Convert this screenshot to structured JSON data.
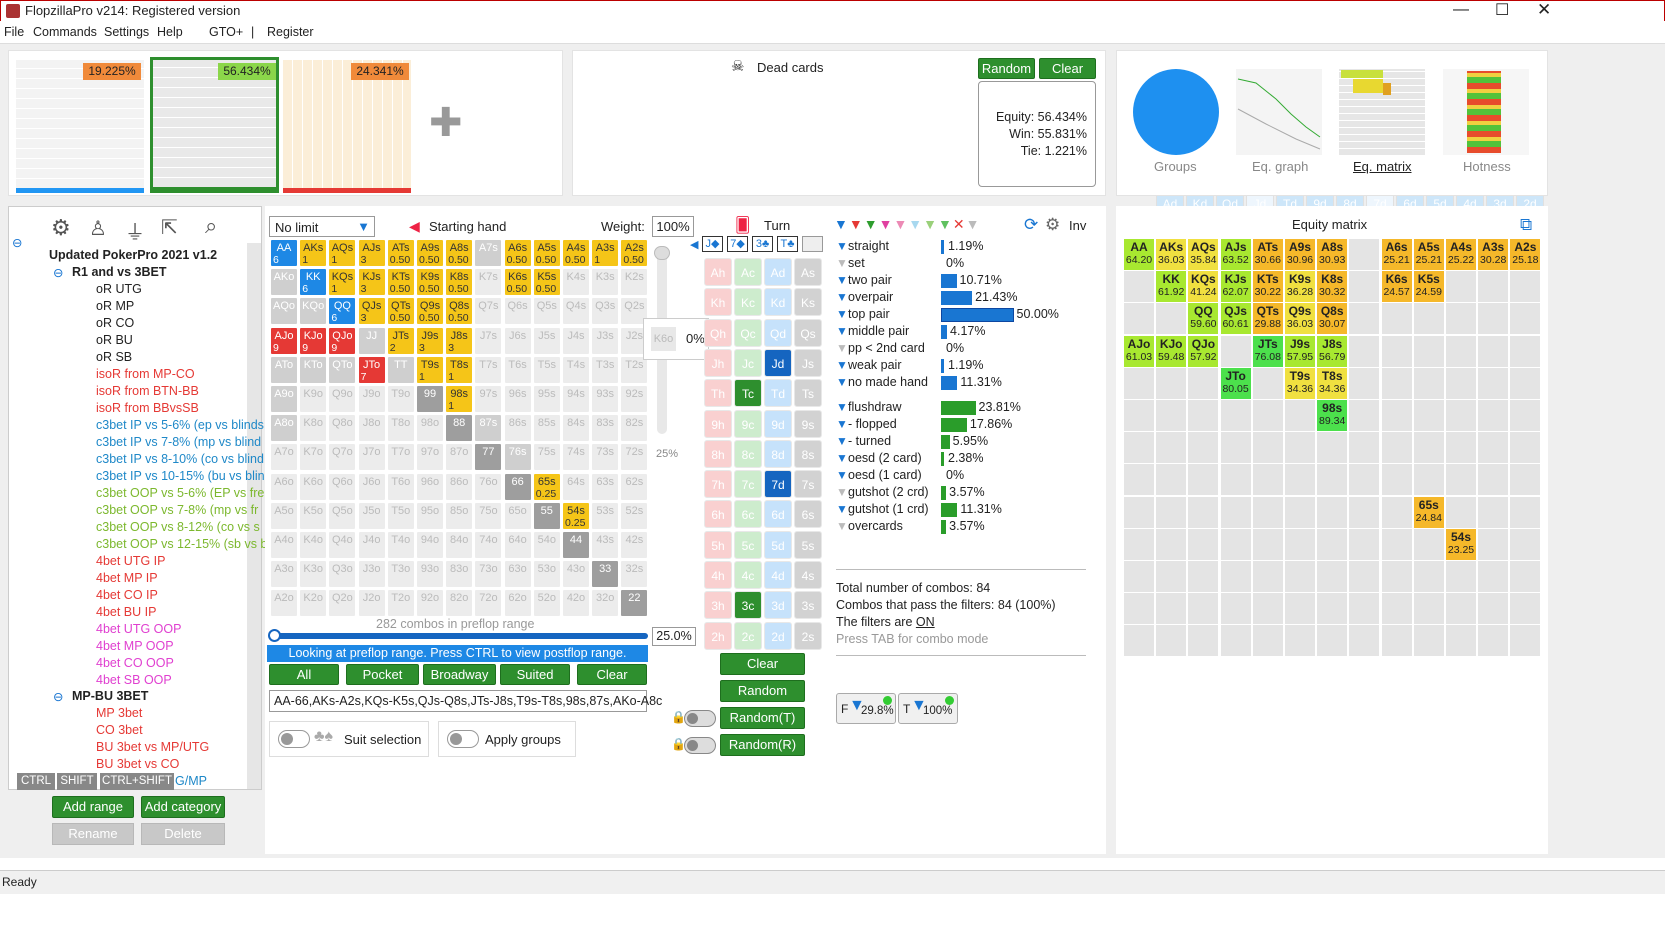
{
  "window": {
    "title": "FlopzillaPro v214: Registered version"
  },
  "menu": [
    "File",
    "Commands",
    "Settings",
    "Help",
    "GTO+",
    "|",
    "Register"
  ],
  "ranges": {
    "p1": "19.225%",
    "p2": "56.434%",
    "p3": "24.341%"
  },
  "dead_cards": {
    "title": "Dead cards",
    "random": "Random",
    "clear": "Clear",
    "rows": [
      [
        "Ah",
        "Kh",
        "Qh",
        "Jh",
        "Th",
        "9h",
        "8h",
        "7h",
        "6h",
        "5h",
        "4h",
        "3h",
        "2h"
      ],
      [
        "Ac",
        "Kc",
        "Qc",
        "Jc",
        "Tc",
        "9c",
        "8c",
        "7c",
        "6c",
        "5c",
        "4c",
        "3c",
        "2c"
      ],
      [
        "Ad",
        "Kd",
        "Qd",
        "Jd",
        "Td",
        "9d",
        "8d",
        "7d",
        "6d",
        "5d",
        "4d",
        "3d",
        "2d"
      ],
      [
        "As",
        "Ks",
        "Qs",
        "Js",
        "Ts",
        "9s",
        "8s",
        "7s",
        "6s",
        "5s",
        "4s",
        "3s",
        "2s"
      ]
    ]
  },
  "equity": {
    "equity": "Equity: 56.434%",
    "win": "Win: 55.831%",
    "tie": "Tie: 1.221%"
  },
  "views": [
    "Groups",
    "Eq. graph",
    "Eq. matrix",
    "Hotness"
  ],
  "tree": {
    "root": "Updated PokerPro 2021 v1.2",
    "c1": "R1 and vs 3BET",
    "items": [
      "oR UTG",
      "oR MP",
      "oR CO",
      "oR BU",
      "oR SB",
      "isoR from MP-CO",
      "isoR from BTN-BB",
      "isoR from BBvsSB",
      "c3bet IP vs 5-6% (ep vs blinds",
      "c3bet IP vs 7-8% (mp vs blind",
      "c3bet IP vs 8-10% (co vs blind",
      "c3bet IP vs 10-15% (bu vs blin",
      "c3bet OOP vs 5-6% (EP vs fre",
      "c3bet OOP vs 7-8% (mp vs fr",
      "c3bet OOP vs 8-12% (co vs s",
      "c3bet OOP vs 12-15% (sb vs b",
      "4bet UTG IP",
      "4bet MP IP",
      "4bet CO IP",
      "4bet BU IP",
      "4bet UTG OOP",
      "4bet MP OOP",
      "4bet CO OOP",
      "4bet SB OOP"
    ],
    "c2": "MP-BU 3BET",
    "items2": [
      "MP 3bet",
      "CO 3bet",
      "BU 3bet vs MP/UTG",
      "BU 3bet vs CO",
      "G/MP"
    ],
    "keys": [
      "CTRL",
      "SHIFT",
      "CTRL+SHIFT"
    ]
  },
  "tree_buttons": {
    "add_range": "Add range",
    "add_category": "Add category",
    "rename": "Rename",
    "delete": "Delete"
  },
  "hand": {
    "limit": "No limit",
    "starting": "Starting hand",
    "weight_label": "Weight:",
    "weight": "100%",
    "combos": "282 combos in preflop range",
    "slider": "25.0%",
    "vslider": "0%",
    "vslider2": "25%",
    "k6o": "K6o",
    "info": "Looking at preflop range. Press CTRL to view postflop range.",
    "buttons": [
      "All",
      "Pocket",
      "Broadway",
      "Suited",
      "Clear"
    ],
    "range_text": "AA-66,AKs-A2s,KQs-K5s,QJs-Q8s,JTs-J8s,T9s-T8s,98s,87s,AKo-A8c",
    "suit_sel": "Suit selection",
    "apply_groups": "Apply groups"
  },
  "turn": {
    "title": "Turn",
    "board": [
      "J◆",
      "7◆",
      "3♣",
      "T♣"
    ],
    "clear": "Clear",
    "random": "Random",
    "random_t": "Random(T)",
    "random_r": "Random(R)"
  },
  "filters": {
    "inv": "Inv",
    "made": [
      [
        "straight",
        "1.19%"
      ],
      [
        "set",
        "0%"
      ],
      [
        "two pair",
        "10.71%"
      ],
      [
        "overpair",
        "21.43%"
      ],
      [
        "top pair",
        "50.00%"
      ],
      [
        "middle pair",
        "4.17%"
      ],
      [
        "pp < 2nd card",
        "0%"
      ],
      [
        "weak pair",
        "1.19%"
      ],
      [
        "no made hand",
        "11.31%"
      ]
    ],
    "draws": [
      [
        "flushdraw",
        "23.81%"
      ],
      [
        "- flopped",
        "17.86%"
      ],
      [
        "- turned",
        "5.95%"
      ],
      [
        "oesd (2 card)",
        "2.38%"
      ],
      [
        "oesd (1 card)",
        "0%"
      ],
      [
        "gutshot (2 crd)",
        "3.57%"
      ],
      [
        "gutshot (1 crd)",
        "11.31%"
      ],
      [
        "overcards",
        "3.57%"
      ]
    ],
    "total": "Total number of combos: 84",
    "pass": "Combos that pass the filters: 84 (100%)",
    "on_pre": "The filters are ",
    "on": "ON",
    "tab": "Press TAB for combo mode",
    "f": "29.8%",
    "t": "100%"
  },
  "matrix": {
    "title": "Equity matrix"
  },
  "status": "Ready"
}
